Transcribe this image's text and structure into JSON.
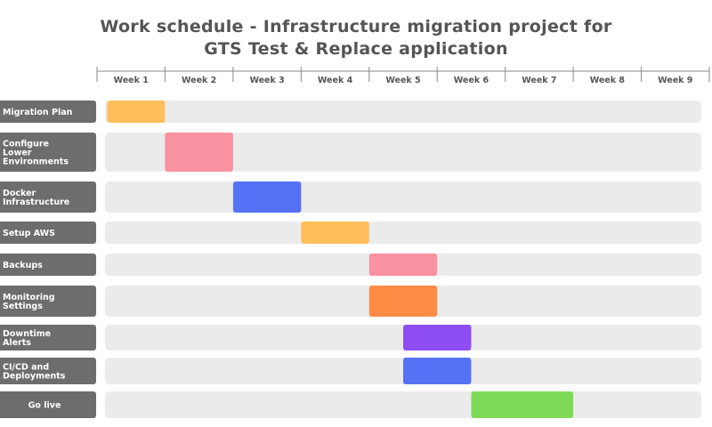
{
  "chart_data": {
    "type": "gantt",
    "title": [
      "Work schedule - Infrastructure migration project for",
      "GTS Test & Replace application"
    ],
    "x_ticks": [
      "Week 1",
      "Week 2",
      "Week 3",
      "Week 4",
      "Week 5",
      "Week 6",
      "Week 7",
      "Week 8",
      "Week 9"
    ],
    "xlim": [
      0,
      9
    ],
    "tasks": [
      {
        "label": [
          "Migration Plan"
        ],
        "start": 0.15,
        "end": 1.0,
        "color": "#FFBE5C"
      },
      {
        "label": [
          "Configure",
          "Lower",
          "Environments"
        ],
        "start": 1.0,
        "end": 2.0,
        "color": "#F891A0"
      },
      {
        "label": [
          "Docker",
          "Infrastructure"
        ],
        "start": 2.0,
        "end": 3.0,
        "color": "#5572F5"
      },
      {
        "label": [
          "Setup AWS"
        ],
        "start": 3.0,
        "end": 4.0,
        "color": "#FFBE5C"
      },
      {
        "label": [
          "Backups"
        ],
        "start": 4.0,
        "end": 5.0,
        "color": "#F891A0"
      },
      {
        "label": [
          "Monitoring",
          "Settings"
        ],
        "start": 4.0,
        "end": 5.0,
        "color": "#FF8C45"
      },
      {
        "label": [
          "Downtime",
          "Alerts"
        ],
        "start": 4.5,
        "end": 5.5,
        "color": "#8E4EF4"
      },
      {
        "label": [
          "CI/CD and",
          "Deployments"
        ],
        "start": 4.5,
        "end": 5.5,
        "color": "#5572F5"
      },
      {
        "label": [
          "Go live"
        ],
        "start": 5.5,
        "end": 7.0,
        "color": "#7ED957"
      }
    ]
  }
}
